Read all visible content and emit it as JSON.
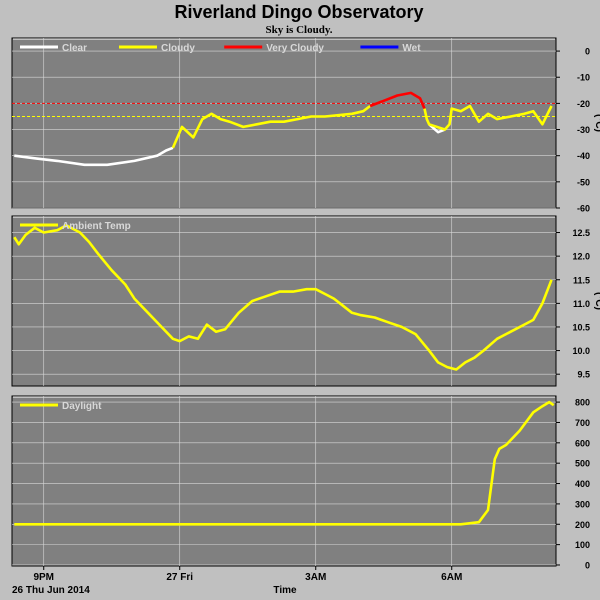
{
  "header": {
    "title": "Riverland Dingo Observatory",
    "subtitle": "Sky is Cloudy."
  },
  "footer": {
    "date_label": "26 Thu Jun 2014",
    "time_label": "Time"
  },
  "colors": {
    "panel_bg": "#808080",
    "page_bg": "#c0c0c0",
    "grid": "#d8d8d8",
    "clear": "#ffffff",
    "cloudy": "#ffff00",
    "very_cloudy": "#ff0000",
    "wet": "#0000ff"
  },
  "chart_data": [
    {
      "type": "line",
      "ylabel": "(°C)",
      "ylim": [
        -60,
        5
      ],
      "yticks": [
        0,
        -10,
        -20,
        -30,
        -40,
        -50,
        -60
      ],
      "xticks": [
        "9PM",
        "27 Fri",
        "3AM",
        "6AM"
      ],
      "xtick_hours": [
        21,
        24,
        27,
        30
      ],
      "xlim": [
        20.3,
        32.3
      ],
      "grid": true,
      "legend_position": "top-left",
      "thresholds": [
        {
          "value": -20,
          "color": "#ff0000"
        },
        {
          "value": -25,
          "color": "#ffff00"
        }
      ],
      "series": [
        {
          "name": "Clear",
          "color": "#ffffff",
          "x": [
            20.35,
            20.8,
            21.3,
            21.9,
            22.4,
            23.0,
            23.5,
            23.7,
            23.85
          ],
          "y": [
            -40,
            -41,
            -42,
            -43.5,
            -43.5,
            -42,
            -40,
            -38,
            -37
          ]
        },
        {
          "name": "Cloudy",
          "color": "#ffff00",
          "x": [
            23.85,
            24.05,
            24.3,
            24.5,
            24.7,
            24.9,
            25.1,
            25.4,
            25.7,
            26.0,
            26.3,
            26.6,
            26.9,
            27.2,
            27.5,
            27.8,
            28.05,
            28.2
          ],
          "y": [
            -37,
            -29,
            -33,
            -26,
            -24,
            -26,
            -27,
            -29,
            -28,
            -27,
            -27,
            -26,
            -25,
            -25,
            -24.5,
            -24,
            -23,
            -21
          ]
        },
        {
          "name": "Very Cloudy",
          "color": "#ff0000",
          "x": [
            28.2,
            28.5,
            28.8,
            29.1,
            29.3,
            29.4
          ],
          "y": [
            -21,
            -19,
            -17,
            -16,
            -18,
            -22
          ]
        },
        {
          "name": "Clear",
          "color": "#ffffff",
          "x": [
            29.5,
            29.7,
            29.85
          ],
          "y": [
            -28,
            -31,
            -30
          ]
        },
        {
          "name": "Cloudy",
          "color": "#ffff00",
          "x": [
            29.4,
            29.45,
            29.5,
            29.85,
            29.95,
            30.0,
            30.2,
            30.4,
            30.6,
            30.8,
            31.0,
            31.3,
            31.6,
            31.8,
            32.0,
            32.2
          ],
          "y": [
            -22,
            -26,
            -28,
            -30,
            -28,
            -22,
            -23,
            -21,
            -27,
            -24,
            -26,
            -25,
            -24,
            -23,
            -28,
            -21
          ]
        },
        {
          "name": "Wet",
          "color": "#0000ff",
          "x": [],
          "y": []
        }
      ]
    },
    {
      "type": "line",
      "ylabel": "(°C)",
      "ylim": [
        9.25,
        12.85
      ],
      "yticks": [
        12.5,
        12.0,
        11.5,
        11.0,
        10.5,
        10.0,
        9.5
      ],
      "xticks": [
        "9PM",
        "27 Fri",
        "3AM",
        "6AM"
      ],
      "xtick_hours": [
        21,
        24,
        27,
        30
      ],
      "xlim": [
        20.3,
        32.3
      ],
      "grid": true,
      "legend_position": "top-left",
      "series": [
        {
          "name": "Ambient Temp",
          "color": "#ffff00",
          "x": [
            20.35,
            20.45,
            20.6,
            20.8,
            21.0,
            21.3,
            21.5,
            21.8,
            22.0,
            22.2,
            22.5,
            22.8,
            23.0,
            23.3,
            23.6,
            23.85,
            24.0,
            24.2,
            24.4,
            24.6,
            24.8,
            25.0,
            25.3,
            25.6,
            25.9,
            26.2,
            26.5,
            26.8,
            27.0,
            27.2,
            27.4,
            27.6,
            27.8,
            28.0,
            28.3,
            28.6,
            28.9,
            29.2,
            29.5,
            29.7,
            29.9,
            30.1,
            30.3,
            30.5,
            30.7,
            31.0,
            31.3,
            31.6,
            31.8,
            32.0,
            32.2
          ],
          "y": [
            12.4,
            12.25,
            12.45,
            12.6,
            12.5,
            12.55,
            12.65,
            12.5,
            12.3,
            12.05,
            11.7,
            11.4,
            11.1,
            10.8,
            10.5,
            10.25,
            10.2,
            10.3,
            10.25,
            10.55,
            10.4,
            10.45,
            10.8,
            11.05,
            11.15,
            11.25,
            11.25,
            11.3,
            11.3,
            11.2,
            11.1,
            10.95,
            10.8,
            10.75,
            10.7,
            10.6,
            10.5,
            10.35,
            10.0,
            9.75,
            9.65,
            9.6,
            9.75,
            9.85,
            10.0,
            10.25,
            10.4,
            10.55,
            10.65,
            11.0,
            11.5
          ]
        }
      ]
    },
    {
      "type": "line",
      "ylim": [
        -5,
        830
      ],
      "yticks": [
        0,
        100,
        200,
        300,
        400,
        500,
        600,
        700,
        800
      ],
      "xticks": [
        "9PM",
        "27 Fri",
        "3AM",
        "6AM"
      ],
      "xtick_hours": [
        21,
        24,
        27,
        30
      ],
      "xlim": [
        20.3,
        32.3
      ],
      "grid": true,
      "legend_position": "top-left",
      "series": [
        {
          "name": "Daylight",
          "color": "#ffff00",
          "x": [
            20.35,
            22.0,
            24.0,
            26.0,
            28.0,
            29.5,
            30.2,
            30.6,
            30.8,
            30.95,
            31.05,
            31.2,
            31.5,
            31.8,
            32.0,
            32.15,
            32.25
          ],
          "y": [
            200,
            200,
            200,
            200,
            200,
            200,
            200,
            210,
            270,
            520,
            570,
            590,
            660,
            750,
            780,
            800,
            785
          ]
        }
      ]
    }
  ]
}
